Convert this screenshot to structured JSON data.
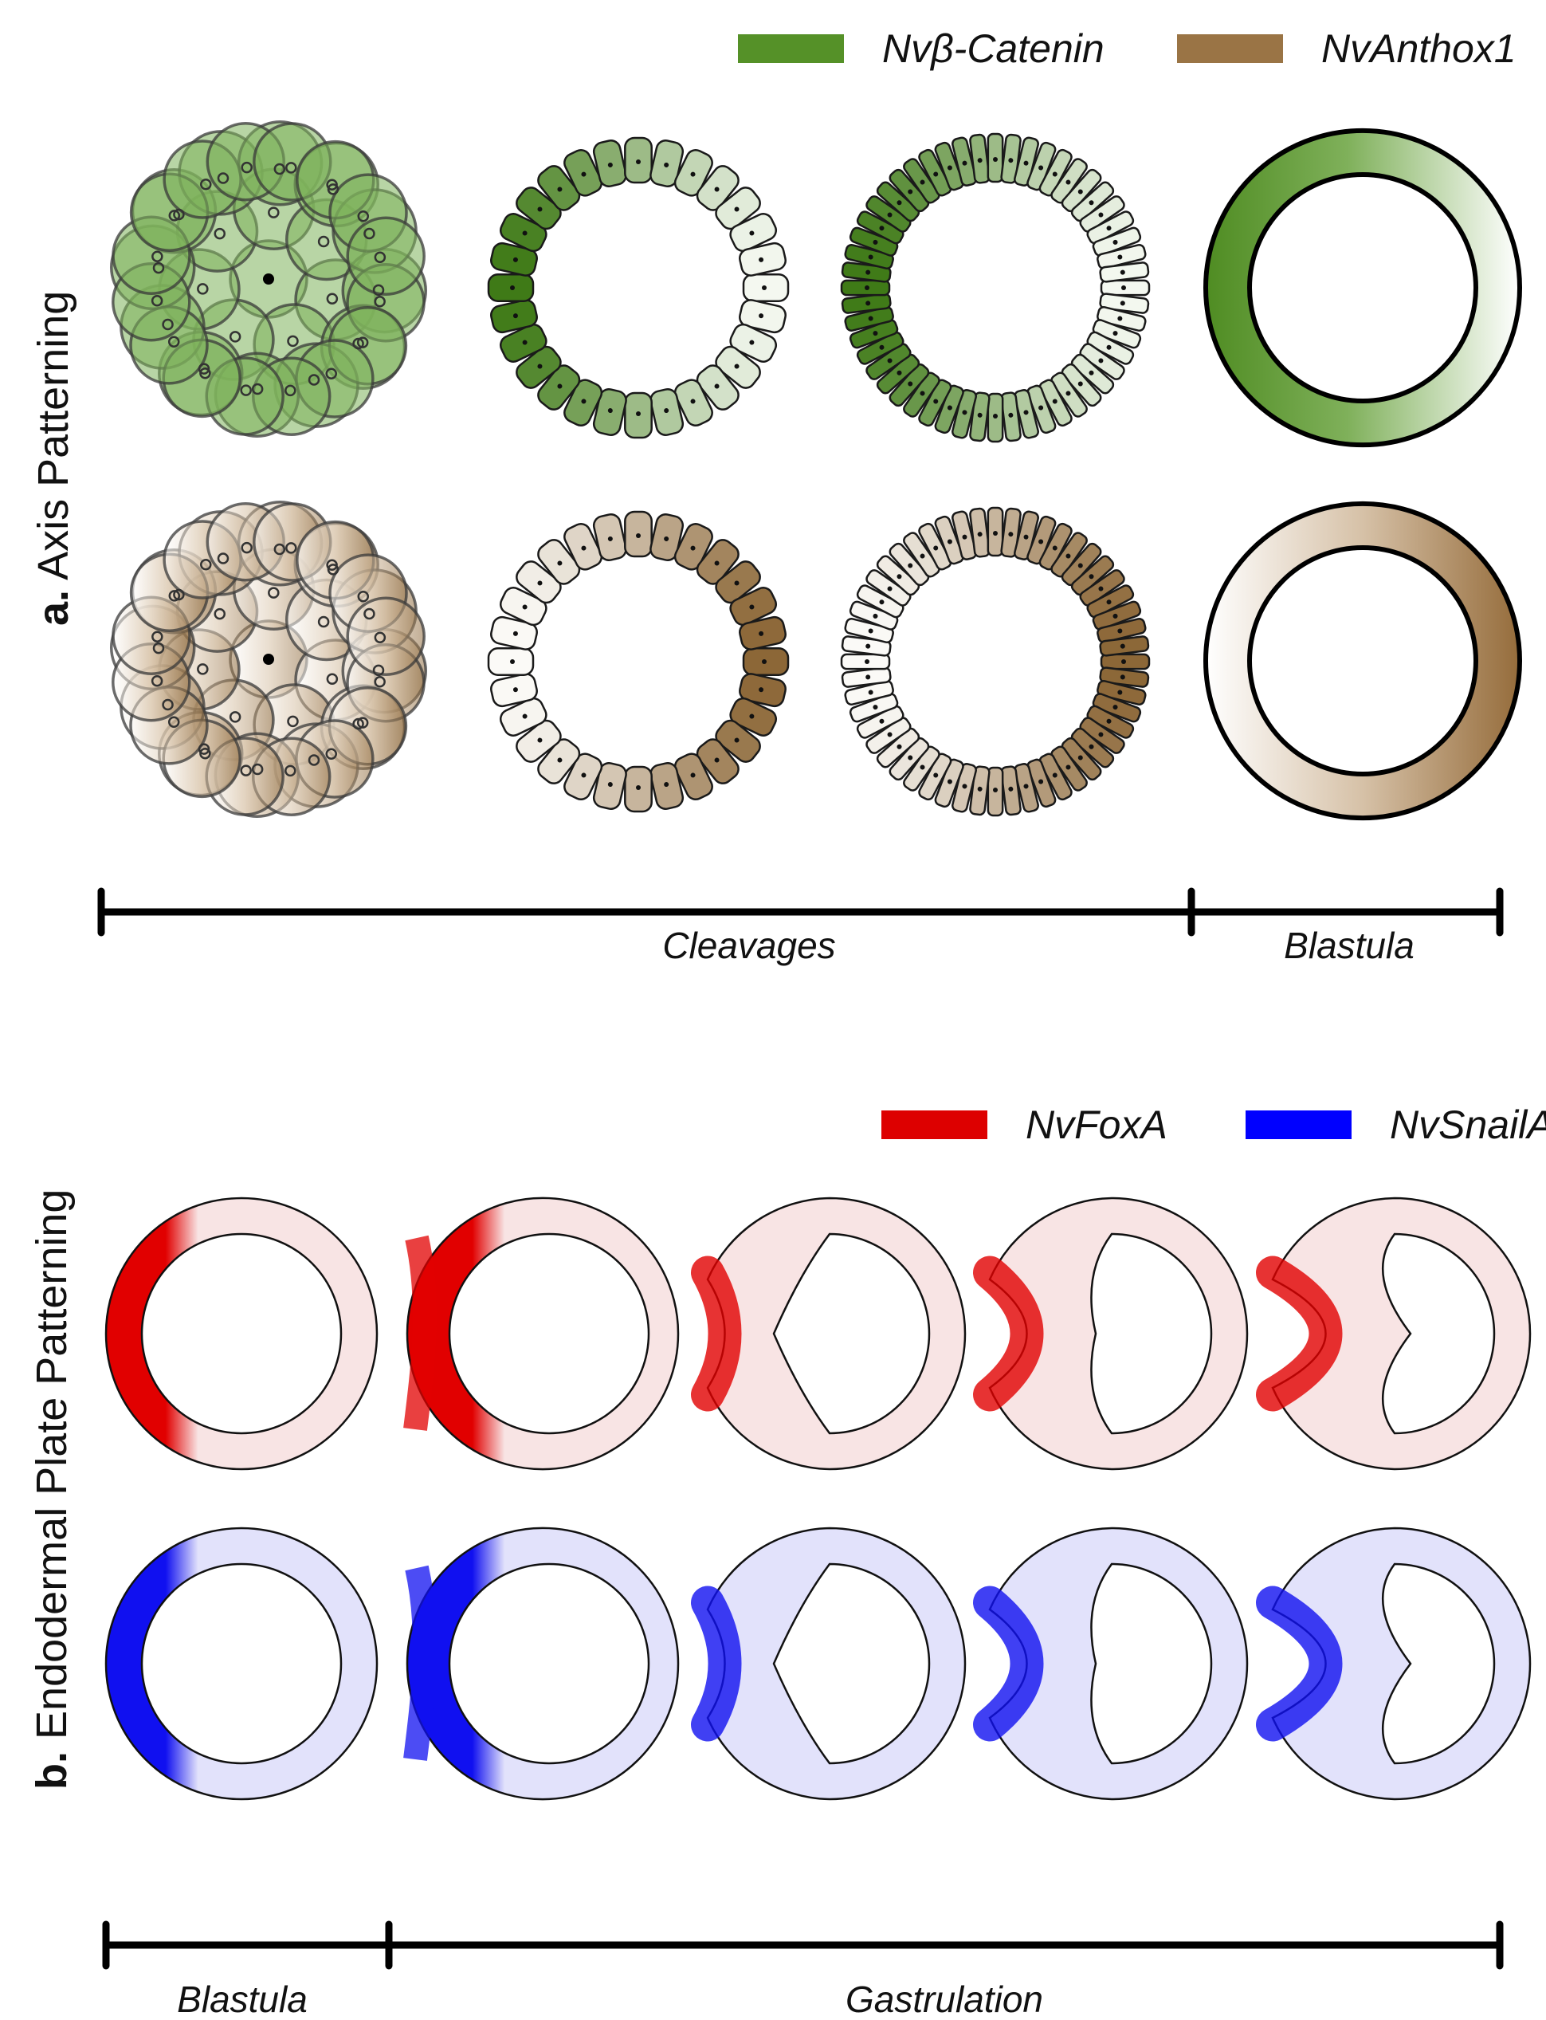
{
  "panel_a": {
    "letter": "a.",
    "title": "Axis Patterning",
    "legend": [
      {
        "label": "Nvβ-Catenin",
        "color": "#559128"
      },
      {
        "label": "NvAnthox1",
        "color": "#9a7445"
      }
    ],
    "timeline": [
      "Cleavages",
      "Blastula"
    ]
  },
  "panel_b": {
    "letter": "b.",
    "title": "Endodermal Plate Patterning",
    "legend": [
      {
        "label": "NvFoxA",
        "color": "#dd0000"
      },
      {
        "label": "NvSnailA",
        "color": "#0000ff"
      }
    ],
    "timeline": [
      "Blastula",
      "Gastrulation"
    ]
  }
}
